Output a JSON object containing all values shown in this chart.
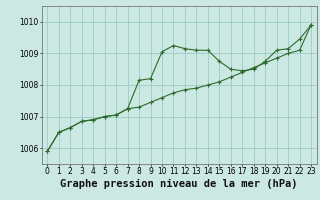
{
  "background_color": "#cce8e3",
  "grid_color": "#99ccc6",
  "line_color": "#2d6b2d",
  "xlabel": "Graphe pression niveau de la mer (hPa)",
  "xlabel_fontsize": 7.5,
  "ylim": [
    1005.5,
    1010.5
  ],
  "xlim": [
    -0.5,
    23.5
  ],
  "yticks": [
    1006,
    1007,
    1008,
    1009,
    1010
  ],
  "xticks": [
    0,
    1,
    2,
    3,
    4,
    5,
    6,
    7,
    8,
    9,
    10,
    11,
    12,
    13,
    14,
    15,
    16,
    17,
    18,
    19,
    20,
    21,
    22,
    23
  ],
  "series1_x": [
    0,
    1,
    2,
    3,
    4,
    5,
    6,
    7,
    8,
    9,
    10,
    11,
    12,
    13,
    14,
    15,
    16,
    17,
    18,
    19,
    20,
    21,
    22,
    23
  ],
  "series1_y": [
    1005.9,
    1006.5,
    1006.65,
    1006.85,
    1006.9,
    1007.0,
    1007.05,
    1007.25,
    1008.15,
    1008.2,
    1009.05,
    1009.25,
    1009.15,
    1009.1,
    1009.1,
    1008.75,
    1008.5,
    1008.45,
    1008.5,
    1008.75,
    1009.1,
    1009.15,
    1009.45,
    1009.9
  ],
  "series2_x": [
    0,
    1,
    2,
    3,
    4,
    5,
    6,
    7,
    8,
    9,
    10,
    11,
    12,
    13,
    14,
    15,
    16,
    17,
    18,
    19,
    20,
    21,
    22,
    23
  ],
  "series2_y": [
    1005.9,
    1006.5,
    1006.65,
    1006.85,
    1006.9,
    1007.0,
    1007.05,
    1007.25,
    1007.3,
    1007.45,
    1007.6,
    1007.75,
    1007.85,
    1007.9,
    1008.0,
    1008.1,
    1008.25,
    1008.4,
    1008.55,
    1008.7,
    1008.85,
    1009.0,
    1009.1,
    1009.9
  ],
  "tick_fontsize": 5.5,
  "marker_size": 2.5,
  "linewidth": 0.8
}
